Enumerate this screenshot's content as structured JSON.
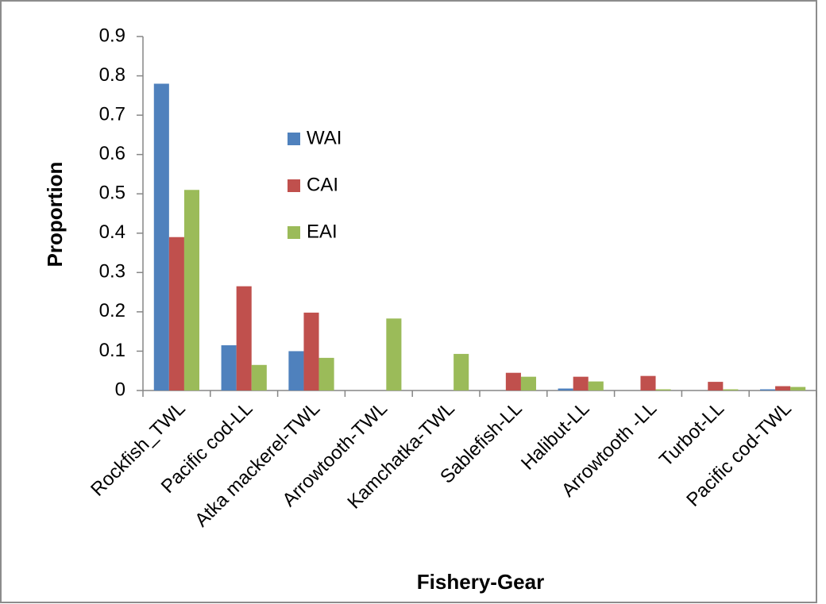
{
  "chart_data": {
    "type": "bar",
    "x_label": "Fishery-Gear",
    "y_label": "Proportion",
    "categories": [
      "Rockfish_TWL",
      "Pacific cod-LL",
      "Atka mackerel-TWL",
      "Arrowtooth-TWL",
      "Kamchatka-TWL",
      "Sablefish-LL",
      "Halibut-LL",
      "Arrowtooth -LL",
      "Turbot-LL",
      "Pacific cod-TWL"
    ],
    "series": [
      {
        "name": "WAI",
        "color": "#4f81bd",
        "values": [
          0.78,
          0.115,
          0.1,
          0,
          0,
          0,
          0.005,
          0,
          0,
          0.003
        ]
      },
      {
        "name": "CAI",
        "color": "#c0504d",
        "values": [
          0.39,
          0.265,
          0.198,
          0,
          0,
          0.045,
          0.035,
          0.037,
          0.022,
          0.011
        ]
      },
      {
        "name": "EAI",
        "color": "#9bbb59",
        "values": [
          0.51,
          0.065,
          0.083,
          0.183,
          0.093,
          0.035,
          0.023,
          0.003,
          0.003,
          0.009
        ]
      }
    ],
    "ylim": [
      0,
      0.9
    ],
    "yticks": [
      0,
      0.1,
      0.2,
      0.3,
      0.4,
      0.5,
      0.6,
      0.7,
      0.8,
      0.9
    ],
    "grid": false
  }
}
